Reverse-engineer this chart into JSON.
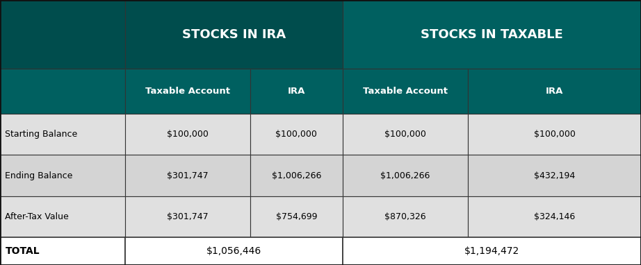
{
  "dark_teal": "#004d4d",
  "medium_teal": "#006060",
  "light_gray": "#d4d4d4",
  "lighter_gray": "#e0e0e0",
  "white": "#ffffff",
  "black": "#000000",
  "header1_text": "STOCKS IN IRA",
  "header2_text": "STOCKS IN TAXABLE",
  "subheader_col2": "Taxable Account",
  "subheader_col3": "IRA",
  "subheader_col4": "Taxable Account",
  "subheader_col5": "IRA",
  "rows": [
    [
      "Starting Balance",
      "$100,000",
      "$100,000",
      "$100,000",
      "$100,000"
    ],
    [
      "Ending Balance",
      "$301,747",
      "$1,006,266",
      "$1,006,266",
      "$432,194"
    ],
    [
      "After-Tax Value",
      "$301,747",
      "$754,699",
      "$870,326",
      "$324,146"
    ]
  ],
  "total_row": [
    "TOTAL",
    "$1,056,446",
    "$1,194,472"
  ],
  "figsize": [
    9.22,
    3.82
  ],
  "dpi": 100
}
